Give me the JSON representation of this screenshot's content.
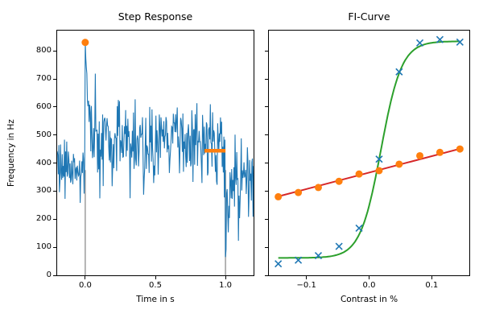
{
  "figure": {
    "background": "#ffffff"
  },
  "colors": {
    "trace_blue": "#1f77b4",
    "marker_orange": "#ff7f0e",
    "fit_green": "#2ca02c",
    "fit_red": "#d62728",
    "stim_gray": "#ababab",
    "axis_black": "#000000"
  },
  "chart_data": [
    {
      "type": "line",
      "title": "Step Response",
      "xlabel": "Time in s",
      "ylabel": "Frequency in Hz",
      "xlim": [
        -0.2,
        1.2
      ],
      "ylim": [
        0,
        872
      ],
      "xticks": [
        0.0,
        0.5,
        1.0
      ],
      "xtick_labels": [
        "0.0",
        "0.5",
        "1.0"
      ],
      "yticks": [
        0,
        100,
        200,
        300,
        400,
        500,
        600,
        700,
        800
      ],
      "ytick_labels": [
        "0",
        "100",
        "200",
        "300",
        "400",
        "500",
        "600",
        "700",
        "800"
      ],
      "grid": false,
      "series_name": "firing-rate-trace",
      "trace": {
        "t_start": -0.2,
        "t_end": 1.2,
        "dt": 0.004,
        "seed": 9,
        "stim_onset": 0.0,
        "stim_offset": 1.0,
        "baseline_mean": 378,
        "baseline_std": 60,
        "stimulus_mean": 478,
        "stimulus_std": 80,
        "post_mean": 352,
        "post_std": 68,
        "onset_peak": 830,
        "onset_tau": 0.012,
        "offset_dip": 65,
        "offset_tau": 0.018
      },
      "annotations": {
        "peak_marker": {
          "t": 0.0,
          "value": 830
        },
        "steady_state_bar": {
          "t_start": 0.85,
          "t_end": 1.0,
          "value": 444
        },
        "stimulus_lines": {
          "times": [
            0.0,
            1.0
          ],
          "top_value": 375
        }
      }
    },
    {
      "type": "scatter",
      "title": "FI-Curve",
      "xlabel": "Contrast in %",
      "xlim": [
        -0.16,
        0.16
      ],
      "ylim": [
        0,
        872
      ],
      "xticks": [
        -0.1,
        0.0,
        0.1
      ],
      "xtick_labels": [
        "−0.1",
        "0.0",
        "0.1"
      ],
      "yticks": [
        0,
        100,
        200,
        300,
        400,
        500,
        600,
        700,
        800
      ],
      "ytick_labels_visible": false,
      "grid": false,
      "contrasts": [
        -0.145,
        -0.113,
        -0.081,
        -0.048,
        -0.016,
        0.016,
        0.048,
        0.081,
        0.113,
        0.145
      ],
      "series": [
        {
          "name": "onset-rate-points",
          "marker": "x",
          "color": "#1f77b4",
          "y": [
            41,
            54,
            70,
            103,
            168,
            414,
            725,
            828,
            840,
            831
          ]
        },
        {
          "name": "steady-rate-points",
          "marker": "circle",
          "color": "#ff7f0e",
          "y": [
            280,
            295,
            313,
            335,
            361,
            373,
            396,
            426,
            438,
            450
          ]
        }
      ],
      "fits": [
        {
          "name": "sigmoid-fit",
          "shape": "boltzmann",
          "color": "#2ca02c",
          "base": 62,
          "amplitude": 772,
          "x_half": 0.019,
          "slope_k": 0.0165,
          "x_range": [
            -0.145,
            0.145
          ]
        },
        {
          "name": "linear-fit",
          "shape": "line",
          "color": "#d62728",
          "intercept": 366,
          "slope": 586,
          "x_range": [
            -0.145,
            0.145
          ]
        }
      ]
    }
  ]
}
